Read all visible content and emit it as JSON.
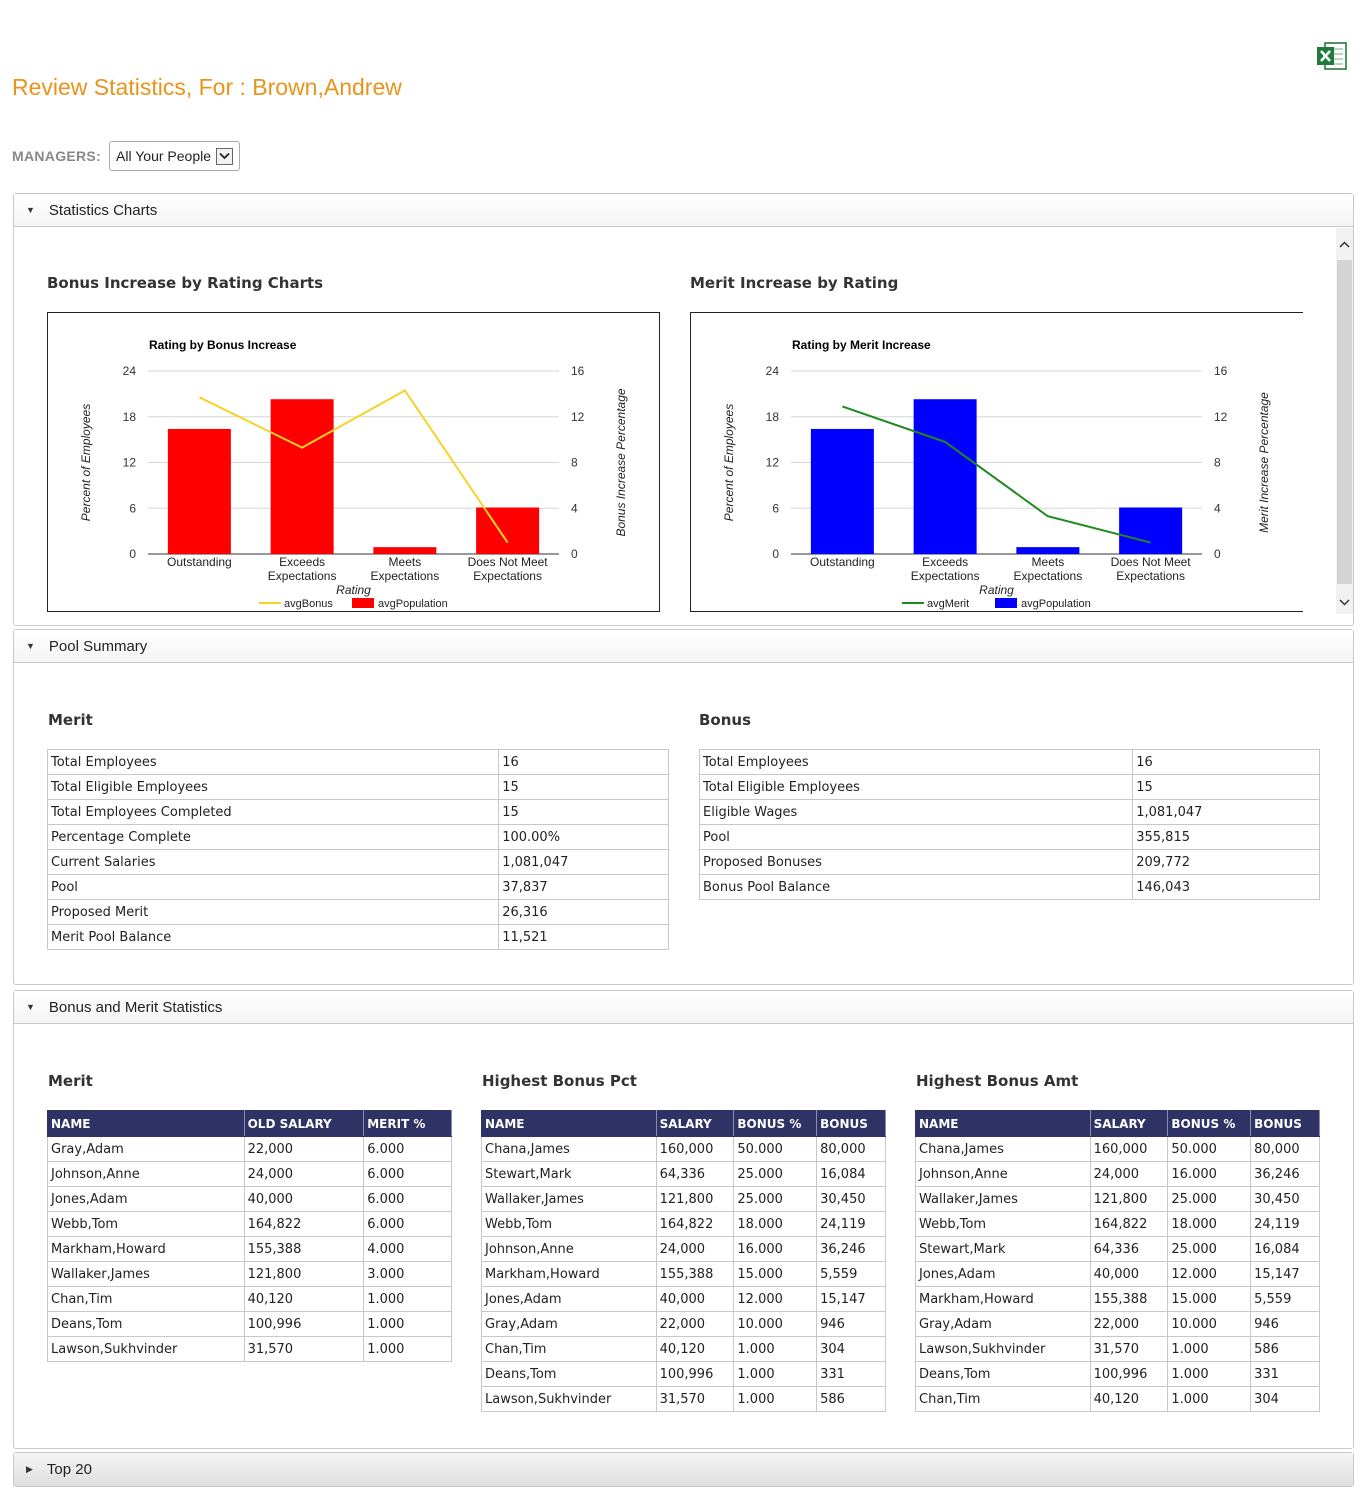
{
  "page": {
    "title": "Review Statistics, For : Brown,Andrew",
    "export_icon": "excel-icon"
  },
  "managers": {
    "label": "MANAGERS:",
    "selected": "All Your People"
  },
  "panels": {
    "statistics_charts": "Statistics Charts",
    "pool_summary": "Pool Summary",
    "bonus_merit_stats": "Bonus and Merit Statistics",
    "top20": "Top 20"
  },
  "charts_section": {
    "bonus_heading": "Bonus Increase by Rating Charts",
    "merit_heading": "Merit Increase by Rating"
  },
  "chart_data": [
    {
      "type": "bar",
      "title": "Rating by Bonus Increase",
      "categories": [
        [
          "Outstanding"
        ],
        [
          "Exceeds",
          "Expectations"
        ],
        [
          "Meets",
          "Expectations"
        ],
        [
          "Does Not Meet",
          "Expectations"
        ]
      ],
      "xlabel": "Rating",
      "ylabel": "Percent of Employees",
      "y2label": "Bonus Increase Percentage",
      "ylim": [
        0,
        24
      ],
      "y2lim": [
        0,
        16
      ],
      "yticks": [
        "0",
        "6",
        "12",
        "18",
        "24"
      ],
      "y2ticks": [
        "0",
        "4",
        "8",
        "12",
        "16"
      ],
      "bar_series": {
        "name": "avgPopulation",
        "color": "#ff0000",
        "values": [
          16.4,
          20.3,
          0.9,
          6.1
        ]
      },
      "line_series": {
        "name": "avgBonus",
        "color": "#f5d327",
        "values": [
          13.7,
          9.3,
          14.3,
          1.0
        ]
      },
      "grid": true,
      "legend": "bottom"
    },
    {
      "type": "bar",
      "title": "Rating by Merit Increase",
      "categories": [
        [
          "Outstanding"
        ],
        [
          "Exceeds",
          "Expectations"
        ],
        [
          "Meets",
          "Expectations"
        ],
        [
          "Does Not Meet",
          "Expectations"
        ]
      ],
      "xlabel": "Rating",
      "ylabel": "Percent of Employees",
      "y2label": "Merit Increase Percentage",
      "ylim": [
        0,
        24
      ],
      "y2lim": [
        0,
        16
      ],
      "yticks": [
        "0",
        "6",
        "12",
        "18",
        "24"
      ],
      "y2ticks": [
        "0",
        "4",
        "8",
        "12",
        "16"
      ],
      "bar_series": {
        "name": "avgPopulation",
        "color": "#0000ff",
        "values": [
          16.4,
          20.3,
          0.9,
          6.1
        ]
      },
      "line_series": {
        "name": "avgMerit",
        "color": "#1e8a1e",
        "values": [
          12.9,
          9.8,
          3.3,
          1.0
        ]
      },
      "grid": true,
      "legend": "bottom"
    }
  ],
  "pool_summary": {
    "merit": {
      "heading": "Merit",
      "rows": [
        [
          "Total Employees",
          "16"
        ],
        [
          "Total Eligible Employees",
          "15"
        ],
        [
          "Total Employees Completed",
          "15"
        ],
        [
          "Percentage  Complete",
          "100.00%"
        ],
        [
          "Current Salaries",
          "1,081,047"
        ],
        [
          "Pool",
          "37,837"
        ],
        [
          "Proposed Merit",
          "26,316"
        ],
        [
          "Merit Pool Balance",
          "11,521"
        ]
      ]
    },
    "bonus": {
      "heading": "Bonus",
      "rows": [
        [
          "Total Employees",
          "16"
        ],
        [
          "Total Eligible Employees",
          "15"
        ],
        [
          "Eligible Wages",
          "1,081,047"
        ],
        [
          "Pool",
          "355,815"
        ],
        [
          "Proposed Bonuses",
          "209,772"
        ],
        [
          "Bonus Pool Balance",
          "146,043"
        ]
      ]
    }
  },
  "stats": {
    "merit": {
      "heading": "Merit",
      "columns": [
        "NAME",
        "OLD SALARY",
        "MERIT %"
      ],
      "rows": [
        [
          "Gray,Adam",
          "22,000",
          "6.000"
        ],
        [
          "Johnson,Anne",
          "24,000",
          "6.000"
        ],
        [
          "Jones,Adam",
          "40,000",
          "6.000"
        ],
        [
          "Webb,Tom",
          "164,822",
          "6.000"
        ],
        [
          "Markham,Howard",
          "155,388",
          "4.000"
        ],
        [
          "Wallaker,James",
          "121,800",
          "3.000"
        ],
        [
          "Chan,Tim",
          "40,120",
          "1.000"
        ],
        [
          "Deans,Tom",
          "100,996",
          "1.000"
        ],
        [
          "Lawson,Sukhvinder",
          "31,570",
          "1.000"
        ]
      ]
    },
    "bonus_pct": {
      "heading": "Highest Bonus Pct",
      "columns": [
        "NAME",
        "SALARY",
        "BONUS %",
        "BONUS"
      ],
      "rows": [
        [
          "Chana,James",
          "160,000",
          "50.000",
          "80,000"
        ],
        [
          "Stewart,Mark",
          "64,336",
          "25.000",
          "16,084"
        ],
        [
          "Wallaker,James",
          "121,800",
          "25.000",
          "30,450"
        ],
        [
          "Webb,Tom",
          "164,822",
          "18.000",
          "24,119"
        ],
        [
          "Johnson,Anne",
          "24,000",
          "16.000",
          "36,246"
        ],
        [
          "Markham,Howard",
          "155,388",
          "15.000",
          "5,559"
        ],
        [
          "Jones,Adam",
          "40,000",
          "12.000",
          "15,147"
        ],
        [
          "Gray,Adam",
          "22,000",
          "10.000",
          "946"
        ],
        [
          "Chan,Tim",
          "40,120",
          "1.000",
          "304"
        ],
        [
          "Deans,Tom",
          "100,996",
          "1.000",
          "331"
        ],
        [
          "Lawson,Sukhvinder",
          "31,570",
          "1.000",
          "586"
        ]
      ]
    },
    "bonus_amt": {
      "heading": "Highest Bonus Amt",
      "columns": [
        "NAME",
        "SALARY",
        "BONUS %",
        "BONUS"
      ],
      "rows": [
        [
          "Chana,James",
          "160,000",
          "50.000",
          "80,000"
        ],
        [
          "Johnson,Anne",
          "24,000",
          "16.000",
          "36,246"
        ],
        [
          "Wallaker,James",
          "121,800",
          "25.000",
          "30,450"
        ],
        [
          "Webb,Tom",
          "164,822",
          "18.000",
          "24,119"
        ],
        [
          "Stewart,Mark",
          "64,336",
          "25.000",
          "16,084"
        ],
        [
          "Jones,Adam",
          "40,000",
          "12.000",
          "15,147"
        ],
        [
          "Markham,Howard",
          "155,388",
          "15.000",
          "5,559"
        ],
        [
          "Gray,Adam",
          "22,000",
          "10.000",
          "946"
        ],
        [
          "Lawson,Sukhvinder",
          "31,570",
          "1.000",
          "586"
        ],
        [
          "Deans,Tom",
          "100,996",
          "1.000",
          "331"
        ],
        [
          "Chan,Tim",
          "40,120",
          "1.000",
          "304"
        ]
      ]
    }
  }
}
